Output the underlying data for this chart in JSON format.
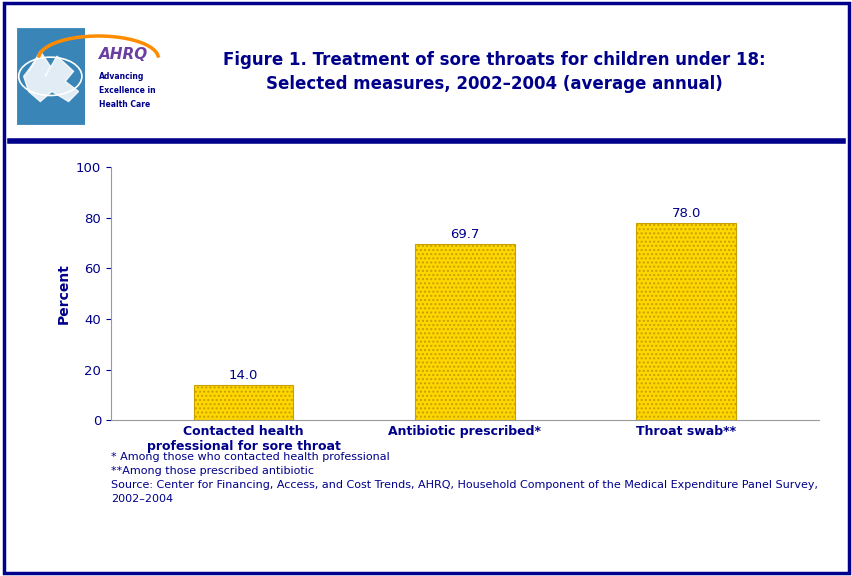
{
  "categories": [
    "Contacted health\nprofessional for sore throat",
    "Antibiotic prescribed*",
    "Throat swab**"
  ],
  "values": [
    14.0,
    69.7,
    78.0
  ],
  "bar_color": "#FFD700",
  "bar_edgecolor": "#C8A000",
  "bar_hatch": "....",
  "title_line1": "Figure 1. Treatment of sore throats for children under 18:",
  "title_line2": "Selected measures, 2002–2004 (average annual)",
  "ylabel": "Percent",
  "ylim": [
    0,
    100
  ],
  "yticks": [
    0,
    20,
    40,
    60,
    80,
    100
  ],
  "value_labels": [
    "14.0",
    "69.7",
    "78.0"
  ],
  "footnote_lines": [
    "* Among those who contacted health professional",
    "**Among those prescribed antibiotic",
    "Source: Center for Financing, Access, and Cost Trends, AHRQ, Household Component of the Medical Expenditure Panel Survey,",
    "2002–2004"
  ],
  "title_color": "#00008B",
  "axis_label_color": "#00008B",
  "tick_label_color": "#00008B",
  "bar_label_color": "#00008B",
  "footnote_color": "#00008B",
  "background_color": "#FFFFFF",
  "border_color": "#00008B",
  "separator_color": "#00008B",
  "logo_bg_color": "#4A9FD4",
  "logo_left_color": "#3A85B8",
  "title_fontsize": 12,
  "ylabel_fontsize": 10,
  "tick_fontsize": 9.5,
  "bar_label_fontsize": 9.5,
  "xtick_fontsize": 9,
  "footnote_fontsize": 8
}
